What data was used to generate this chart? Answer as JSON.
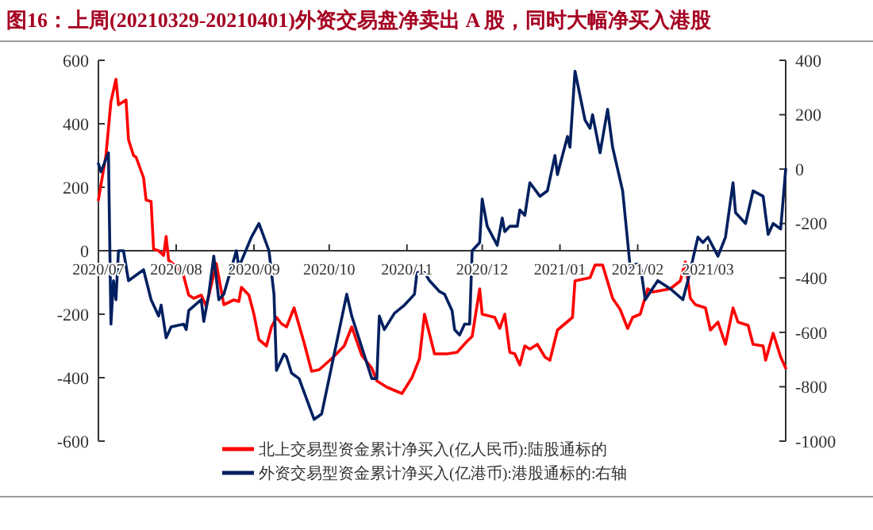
{
  "chart_data": {
    "type": "line",
    "title": "图16：上周(20210329-20210401)外资交易盘净卖出 A 股，同时大幅净买入港股",
    "xlim": [
      "2020-07-01",
      "2021-04-01"
    ],
    "xticks": [
      {
        "value": "2020-07-01",
        "label": "2020/07"
      },
      {
        "value": "2020-08-01",
        "label": "2020/08"
      },
      {
        "value": "2020-09-01",
        "label": "2020/09"
      },
      {
        "value": "2020-10-01",
        "label": "2020/10"
      },
      {
        "value": "2020-11-01",
        "label": "2020/11"
      },
      {
        "value": "2020-12-01",
        "label": "2020/12"
      },
      {
        "value": "2021-01-01",
        "label": "2021/01"
      },
      {
        "value": "2021-02-01",
        "label": "2021/02"
      },
      {
        "value": "2021-03-01",
        "label": "2021/03"
      }
    ],
    "ylim": [
      -600,
      600
    ],
    "yticks": [
      -600,
      -400,
      -200,
      0,
      200,
      400,
      600
    ],
    "y2lim": [
      -1000,
      400
    ],
    "y2ticks": [
      -1000,
      -800,
      -600,
      -400,
      -200,
      0,
      200,
      400
    ],
    "legend": "bottom",
    "series": [
      {
        "name": "北上交易型资金累计净买入(亿人民币):陆股通标的",
        "color": "#ff0000",
        "x": [
          "2020-07-01",
          "2020-07-04",
          "2020-07-06",
          "2020-07-08",
          "2020-07-09",
          "2020-07-12",
          "2020-07-13",
          "2020-07-15",
          "2020-07-16",
          "2020-07-19",
          "2020-07-20",
          "2020-07-22",
          "2020-07-23",
          "2020-07-25",
          "2020-07-27",
          "2020-07-28",
          "2020-07-29",
          "2020-08-01",
          "2020-08-04",
          "2020-08-06",
          "2020-08-08",
          "2020-08-11",
          "2020-08-13",
          "2020-08-17",
          "2020-08-20",
          "2020-08-24",
          "2020-08-26",
          "2020-08-27",
          "2020-08-30",
          "2020-09-01",
          "2020-09-03",
          "2020-09-06",
          "2020-09-08",
          "2020-09-10",
          "2020-09-12",
          "2020-09-14",
          "2020-09-17",
          "2020-09-21",
          "2020-09-24",
          "2020-09-27",
          "2020-10-02",
          "2020-10-07",
          "2020-10-10",
          "2020-10-14",
          "2020-10-18",
          "2020-10-20",
          "2020-10-24",
          "2020-10-30",
          "2020-11-03",
          "2020-11-06",
          "2020-11-08",
          "2020-11-12",
          "2020-11-17",
          "2020-11-21",
          "2020-11-25",
          "2020-11-27",
          "2020-11-30",
          "2020-12-01",
          "2020-12-06",
          "2020-12-08",
          "2020-12-10",
          "2020-12-12",
          "2020-12-14",
          "2020-12-16",
          "2020-12-18",
          "2020-12-20",
          "2020-12-23",
          "2020-12-26",
          "2020-12-28",
          "2020-12-31",
          "2021-01-06",
          "2021-01-07",
          "2021-01-13",
          "2021-01-15",
          "2021-01-18",
          "2021-01-22",
          "2021-01-25",
          "2021-01-28",
          "2021-01-30",
          "2021-02-02",
          "2021-02-05",
          "2021-02-07",
          "2021-02-14",
          "2021-02-18",
          "2021-02-20",
          "2021-02-22",
          "2021-02-24",
          "2021-02-28",
          "2021-03-02",
          "2021-03-05",
          "2021-03-08",
          "2021-03-11",
          "2021-03-13",
          "2021-03-17",
          "2021-03-19",
          "2021-03-23",
          "2021-03-24",
          "2021-03-27",
          "2021-03-30",
          "2021-04-01"
        ],
        "values": [
          160,
          300,
          470,
          540,
          460,
          475,
          350,
          300,
          295,
          230,
          160,
          155,
          5,
          0,
          -15,
          45,
          -30,
          -50,
          -80,
          -140,
          -150,
          -140,
          -175,
          -40,
          -170,
          -155,
          -160,
          -115,
          -140,
          -200,
          -280,
          -300,
          -240,
          -210,
          -230,
          -240,
          -180,
          -290,
          -380,
          -375,
          -340,
          -300,
          -240,
          -330,
          -370,
          -410,
          -430,
          -450,
          -400,
          -340,
          -200,
          -325,
          -325,
          -320,
          -285,
          -270,
          -120,
          -200,
          -210,
          -245,
          -200,
          -320,
          -325,
          -360,
          -300,
          -310,
          -295,
          -335,
          -345,
          -250,
          -210,
          -95,
          -85,
          -45,
          -45,
          -150,
          -185,
          -245,
          -210,
          -200,
          -120,
          -130,
          -120,
          -95,
          -35,
          -150,
          -170,
          -180,
          -250,
          -225,
          -295,
          -180,
          -225,
          -235,
          -295,
          -300,
          -345,
          -260,
          -335,
          -370
        ]
      },
      {
        "name": "外资交易型资金累计净买入(亿港币):港股通标的:右轴",
        "color": "#002060",
        "axis": "y2",
        "x": [
          "2020-07-01",
          "2020-07-02",
          "2020-07-05",
          "2020-07-06",
          "2020-07-07",
          "2020-07-08",
          "2020-07-09",
          "2020-07-11",
          "2020-07-13",
          "2020-07-19",
          "2020-07-22",
          "2020-07-25",
          "2020-07-26",
          "2020-07-28",
          "2020-07-30",
          "2020-08-04",
          "2020-08-05",
          "2020-08-06",
          "2020-08-11",
          "2020-08-12",
          "2020-08-14",
          "2020-08-16",
          "2020-08-18",
          "2020-08-20",
          "2020-08-25",
          "2020-08-26",
          "2020-08-31",
          "2020-09-03",
          "2020-09-07",
          "2020-09-09",
          "2020-09-10",
          "2020-09-13",
          "2020-09-14",
          "2020-09-16",
          "2020-09-19",
          "2020-09-25",
          "2020-09-28",
          "2020-10-08",
          "2020-10-10",
          "2020-10-18",
          "2020-10-20",
          "2020-10-21",
          "2020-10-23",
          "2020-10-27",
          "2020-10-31",
          "2020-11-04",
          "2020-11-05",
          "2020-11-08",
          "2020-11-10",
          "2020-11-14",
          "2020-11-16",
          "2020-11-19",
          "2020-11-20",
          "2020-11-22",
          "2020-11-24",
          "2020-11-26",
          "2020-11-27",
          "2020-11-30",
          "2020-12-01",
          "2020-12-03",
          "2020-12-07",
          "2020-12-09",
          "2020-12-10",
          "2020-12-12",
          "2020-12-15",
          "2020-12-16",
          "2020-12-18",
          "2020-12-20",
          "2020-12-24",
          "2020-12-27",
          "2020-12-30",
          "2020-12-31",
          "2021-01-04",
          "2021-01-05",
          "2021-01-07",
          "2021-01-11",
          "2021-01-13",
          "2021-01-14",
          "2021-01-17",
          "2021-01-20",
          "2021-01-22",
          "2021-01-26",
          "2021-01-29",
          "2021-01-31",
          "2021-02-02",
          "2021-02-04",
          "2021-02-09",
          "2021-02-14",
          "2021-02-19",
          "2021-02-21",
          "2021-02-23",
          "2021-02-25",
          "2021-02-27",
          "2021-03-01",
          "2021-03-05",
          "2021-03-08",
          "2021-03-11",
          "2021-03-12",
          "2021-03-16",
          "2021-03-19",
          "2021-03-23",
          "2021-03-25",
          "2021-03-27",
          "2021-03-30",
          "2021-04-01"
        ],
        "values": [
          20,
          -10,
          60,
          -570,
          -410,
          -480,
          -300,
          -300,
          -410,
          -370,
          -480,
          -540,
          -500,
          -620,
          -580,
          -570,
          -590,
          -520,
          -480,
          -560,
          -460,
          -320,
          -480,
          -460,
          -300,
          -360,
          -250,
          -200,
          -300,
          -460,
          -740,
          -680,
          -690,
          -750,
          -770,
          -920,
          -900,
          -460,
          -540,
          -770,
          -770,
          -540,
          -590,
          -530,
          -500,
          -460,
          -380,
          -380,
          -410,
          -450,
          -460,
          -520,
          -590,
          -610,
          -570,
          -570,
          -300,
          -270,
          -110,
          -210,
          -280,
          -180,
          -230,
          -210,
          -210,
          -150,
          -170,
          -50,
          -100,
          -80,
          50,
          -20,
          120,
          80,
          360,
          180,
          150,
          200,
          60,
          220,
          80,
          -80,
          -360,
          -350,
          -350,
          -480,
          -410,
          -440,
          -480,
          -410,
          -330,
          -250,
          -270,
          -250,
          -320,
          -250,
          -50,
          -160,
          -200,
          -80,
          -100,
          -240,
          -200,
          -220,
          0
        ]
      }
    ]
  }
}
